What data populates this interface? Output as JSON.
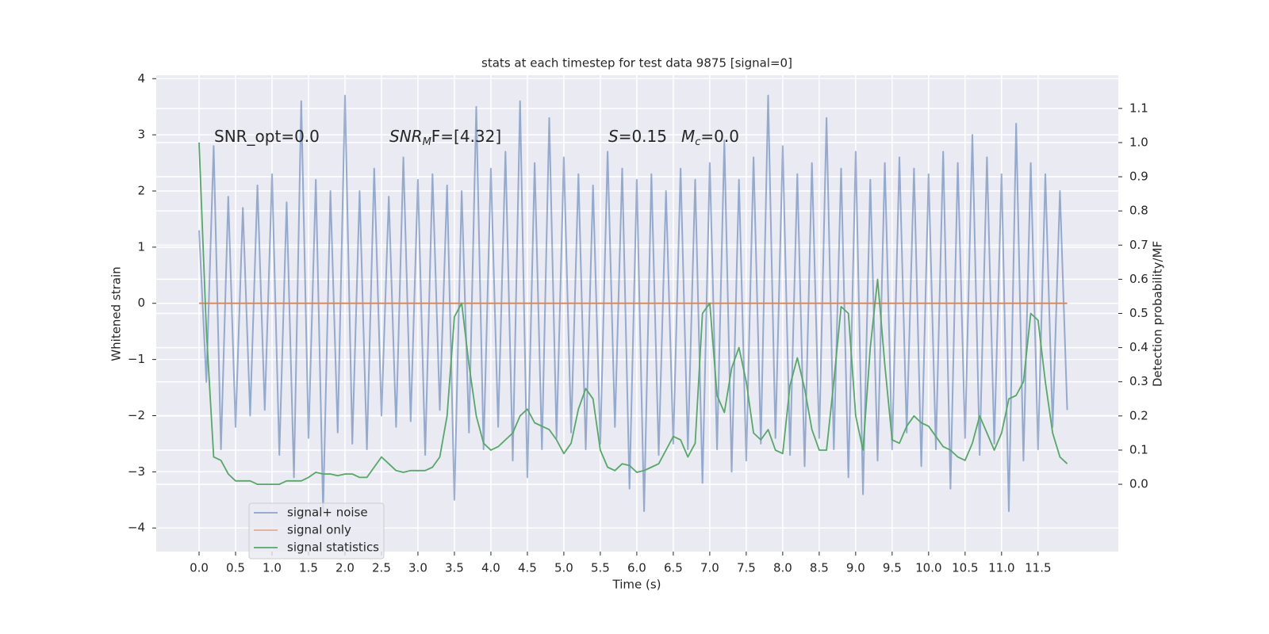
{
  "chart_data": {
    "type": "line",
    "title": "stats at each timestep for test data 9875 [signal=0]",
    "xlabel": "Time (s)",
    "ylabel": "Whitened strain",
    "y2label": "Detection probability/MF",
    "annotations": [
      {
        "text": "SNR_opt=0.0"
      },
      {
        "text": "SNR",
        "sub": "M",
        "rest": "F=[4.32]"
      },
      {
        "text": "S",
        "rest": "=0.15"
      },
      {
        "text": "M",
        "sub": "c",
        "rest": "=0.0"
      }
    ],
    "grid": true,
    "legend": "lower left",
    "xlim": [
      -0.587,
      12.6
    ],
    "ylim": [
      -4.42,
      4.06
    ],
    "y2lim": [
      -0.197,
      1.197
    ],
    "xticks": [
      {
        "value": 0,
        "label": "0.0"
      },
      {
        "value": 0.5,
        "label": "0.5"
      },
      {
        "value": 1,
        "label": "1.0"
      },
      {
        "value": 1.5,
        "label": "1.5"
      },
      {
        "value": 2,
        "label": "2.0"
      },
      {
        "value": 2.5,
        "label": "2.5"
      },
      {
        "value": 3,
        "label": "3.0"
      },
      {
        "value": 3.5,
        "label": "3.5"
      },
      {
        "value": 4,
        "label": "4.0"
      },
      {
        "value": 4.5,
        "label": "4.5"
      },
      {
        "value": 5,
        "label": "5.0"
      },
      {
        "value": 5.5,
        "label": "5.5"
      },
      {
        "value": 6,
        "label": "6.0"
      },
      {
        "value": 6.5,
        "label": "6.5"
      },
      {
        "value": 7,
        "label": "7.0"
      },
      {
        "value": 7.5,
        "label": "7.5"
      },
      {
        "value": 8,
        "label": "8.0"
      },
      {
        "value": 8.5,
        "label": "8.5"
      },
      {
        "value": 9,
        "label": "9.0"
      },
      {
        "value": 9.5,
        "label": "9.5"
      },
      {
        "value": 10,
        "label": "10.0"
      },
      {
        "value": 10.5,
        "label": "10.5"
      },
      {
        "value": 11,
        "label": "11.0"
      },
      {
        "value": 11.5,
        "label": "11.5"
      }
    ],
    "yticks": [
      {
        "value": -4,
        "label": "−4"
      },
      {
        "value": -3,
        "label": "−3"
      },
      {
        "value": -2,
        "label": "−2"
      },
      {
        "value": -1,
        "label": "−1"
      },
      0,
      1,
      2,
      3,
      4
    ],
    "y2ticks": [
      {
        "value": 0,
        "label": "0.0"
      },
      {
        "value": 0.1,
        "label": "0.1"
      },
      {
        "value": 0.2,
        "label": "0.2"
      },
      {
        "value": 0.3,
        "label": "0.3"
      },
      {
        "value": 0.4,
        "label": "0.4"
      },
      {
        "value": 0.5,
        "label": "0.5"
      },
      {
        "value": 0.6,
        "label": "0.6"
      },
      {
        "value": 0.7,
        "label": "0.7"
      },
      {
        "value": 0.8,
        "label": "0.8"
      },
      {
        "value": 0.9,
        "label": "0.9"
      },
      {
        "value": 1,
        "label": "1.0"
      },
      {
        "value": 1.1,
        "label": "1.1"
      }
    ],
    "x": [
      0,
      0.1,
      0.2,
      0.3,
      0.4,
      0.5,
      0.6,
      0.7,
      0.8,
      0.9,
      1,
      1.1,
      1.2,
      1.3,
      1.4,
      1.5,
      1.6,
      1.7,
      1.8,
      1.9,
      2,
      2.1,
      2.2,
      2.3,
      2.4,
      2.5,
      2.6,
      2.7,
      2.8,
      2.9,
      3,
      3.1,
      3.2,
      3.3,
      3.4,
      3.5,
      3.6,
      3.7,
      3.8,
      3.9,
      4,
      4.1,
      4.2,
      4.3,
      4.4,
      4.5,
      4.6,
      4.7,
      4.8,
      4.9,
      5,
      5.1,
      5.2,
      5.3,
      5.4,
      5.5,
      5.6,
      5.7,
      5.8,
      5.9,
      6,
      6.1,
      6.2,
      6.3,
      6.4,
      6.5,
      6.6,
      6.7,
      6.8,
      6.9,
      7,
      7.1,
      7.2,
      7.3,
      7.4,
      7.5,
      7.6,
      7.7,
      7.8,
      7.9,
      8,
      8.1,
      8.2,
      8.3,
      8.4,
      8.5,
      8.6,
      8.7,
      8.8,
      8.9,
      9,
      9.1,
      9.2,
      9.3,
      9.4,
      9.5,
      9.6,
      9.7,
      9.8,
      9.9,
      10,
      10.1,
      10.2,
      10.3,
      10.4,
      10.5,
      10.6,
      10.7,
      10.8,
      10.9,
      11,
      11.1,
      11.2,
      11.3,
      11.4,
      11.5,
      11.6,
      11.7,
      11.8,
      11.9
    ],
    "series": [
      {
        "name": "signal+ noise",
        "color": "#4c72b0",
        "values": [
          1.3,
          -1.4,
          2.8,
          -2.6,
          1.9,
          -2.2,
          1.7,
          -2.0,
          2.1,
          -1.9,
          2.3,
          -2.7,
          1.8,
          -3.1,
          3.6,
          -2.4,
          2.2,
          -3.7,
          2.0,
          -2.3,
          3.7,
          -2.5,
          2.0,
          -2.6,
          2.4,
          -2.0,
          1.9,
          -2.2,
          2.6,
          -2.1,
          2.2,
          -2.7,
          2.3,
          -1.9,
          2.1,
          -3.5,
          2.0,
          -2.3,
          3.5,
          -2.6,
          2.4,
          -2.2,
          2.7,
          -2.8,
          3.6,
          -3.1,
          2.5,
          -2.6,
          3.3,
          -2.4,
          2.6,
          -2.3,
          2.3,
          -2.6,
          2.1,
          -2.5,
          2.7,
          -2.2,
          2.4,
          -3.3,
          2.2,
          -3.7,
          2.3,
          -2.7,
          2.0,
          -2.5,
          2.4,
          -2.6,
          2.2,
          -3.2,
          2.5,
          -2.6,
          2.9,
          -3.0,
          2.2,
          -2.8,
          2.6,
          -2.5,
          3.7,
          -2.4,
          2.8,
          -2.7,
          2.3,
          -2.9,
          2.5,
          -2.4,
          3.3,
          -2.6,
          2.4,
          -3.1,
          2.7,
          -3.4,
          2.2,
          -2.8,
          2.5,
          -2.6,
          2.6,
          -2.3,
          2.4,
          -2.9,
          2.3,
          -2.6,
          2.7,
          -3.3,
          2.5,
          -2.4,
          3.0,
          -2.7,
          2.6,
          -2.5,
          2.3,
          -3.7,
          3.2,
          -2.8,
          2.5,
          -2.6,
          2.3,
          -2.2,
          2.0,
          -1.9
        ]
      },
      {
        "name": "signal only",
        "color": "#dd8452",
        "values": [
          0,
          0,
          0,
          0,
          0,
          0,
          0,
          0,
          0,
          0,
          0,
          0,
          0,
          0,
          0,
          0,
          0,
          0,
          0,
          0,
          0,
          0,
          0,
          0,
          0,
          0,
          0,
          0,
          0,
          0,
          0,
          0,
          0,
          0,
          0,
          0,
          0,
          0,
          0,
          0,
          0,
          0,
          0,
          0,
          0,
          0,
          0,
          0,
          0,
          0,
          0,
          0,
          0,
          0,
          0,
          0,
          0,
          0,
          0,
          0,
          0,
          0,
          0,
          0,
          0,
          0,
          0,
          0,
          0,
          0,
          0,
          0,
          0,
          0,
          0,
          0,
          0,
          0,
          0,
          0,
          0,
          0,
          0,
          0,
          0,
          0,
          0,
          0,
          0,
          0,
          0,
          0,
          0,
          0,
          0,
          0,
          0,
          0,
          0,
          0,
          0,
          0,
          0,
          0,
          0,
          0,
          0,
          0,
          0,
          0,
          0,
          0,
          0,
          0,
          0,
          0,
          0,
          0,
          0,
          0
        ]
      },
      {
        "name": "signal statistics",
        "color": "#55a868",
        "axis": "y2",
        "values": [
          1.0,
          0.45,
          0.08,
          0.07,
          0.03,
          0.01,
          0.01,
          0.01,
          0.0,
          0.0,
          0.0,
          0.0,
          0.01,
          0.01,
          0.01,
          0.02,
          0.035,
          0.03,
          0.03,
          0.025,
          0.03,
          0.03,
          0.02,
          0.02,
          0.05,
          0.08,
          0.06,
          0.04,
          0.035,
          0.04,
          0.04,
          0.04,
          0.05,
          0.08,
          0.2,
          0.49,
          0.53,
          0.35,
          0.2,
          0.12,
          0.1,
          0.11,
          0.13,
          0.15,
          0.2,
          0.22,
          0.18,
          0.17,
          0.16,
          0.13,
          0.09,
          0.12,
          0.22,
          0.28,
          0.25,
          0.1,
          0.05,
          0.04,
          0.06,
          0.055,
          0.035,
          0.04,
          0.05,
          0.06,
          0.1,
          0.14,
          0.13,
          0.08,
          0.12,
          0.5,
          0.53,
          0.26,
          0.21,
          0.34,
          0.4,
          0.3,
          0.15,
          0.13,
          0.16,
          0.1,
          0.09,
          0.29,
          0.37,
          0.28,
          0.16,
          0.1,
          0.1,
          0.3,
          0.52,
          0.5,
          0.2,
          0.1,
          0.4,
          0.6,
          0.35,
          0.13,
          0.12,
          0.17,
          0.2,
          0.18,
          0.17,
          0.14,
          0.11,
          0.1,
          0.08,
          0.07,
          0.12,
          0.2,
          0.15,
          0.1,
          0.15,
          0.25,
          0.26,
          0.3,
          0.5,
          0.48,
          0.3,
          0.15,
          0.08,
          0.06
        ]
      }
    ]
  }
}
